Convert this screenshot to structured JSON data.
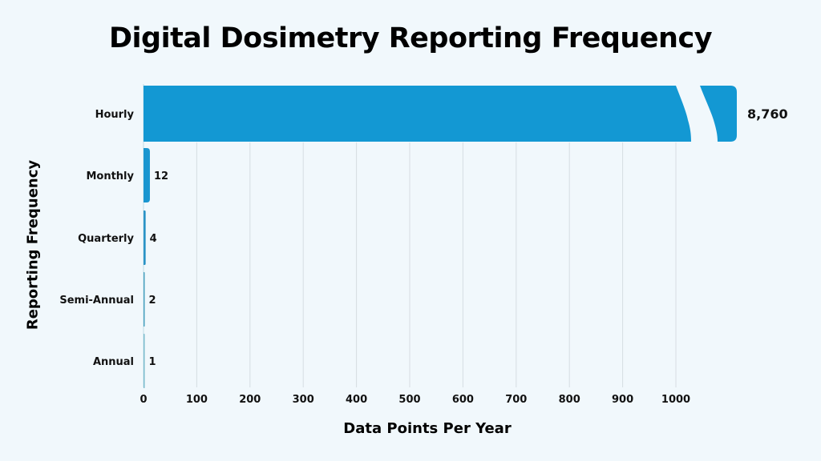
{
  "chart_data": {
    "type": "bar",
    "orientation": "horizontal",
    "title": "Digital Dosimetry Reporting Frequency",
    "xlabel": "Data Points Per Year",
    "ylabel": "Reporting Frequency",
    "categories": [
      "Hourly",
      "Monthly",
      "Quarterly",
      "Semi-Annual",
      "Annual"
    ],
    "values": [
      8760,
      12,
      4,
      2,
      1
    ],
    "value_labels": [
      "8,760",
      "12",
      "4",
      "2",
      "1"
    ],
    "xlim": [
      0,
      1100
    ],
    "xticks": [
      0,
      100,
      200,
      300,
      400,
      500,
      600,
      700,
      800,
      900,
      1000
    ],
    "axis_break": {
      "bar": "Hourly",
      "note": "bar truncated with break marks"
    },
    "grid": {
      "vertical": true,
      "horizontal": false
    },
    "legend": null,
    "colors": {
      "Hourly": "#1398d3",
      "Monthly": "#1a96d0",
      "Quarterly": "#2a93c6",
      "Semi-Annual": "#4aa2bf",
      "Annual": "#7cbccd"
    }
  },
  "colors": {
    "background": "#f1f8fc",
    "grid": "#d6dde2",
    "text": "#111111"
  }
}
